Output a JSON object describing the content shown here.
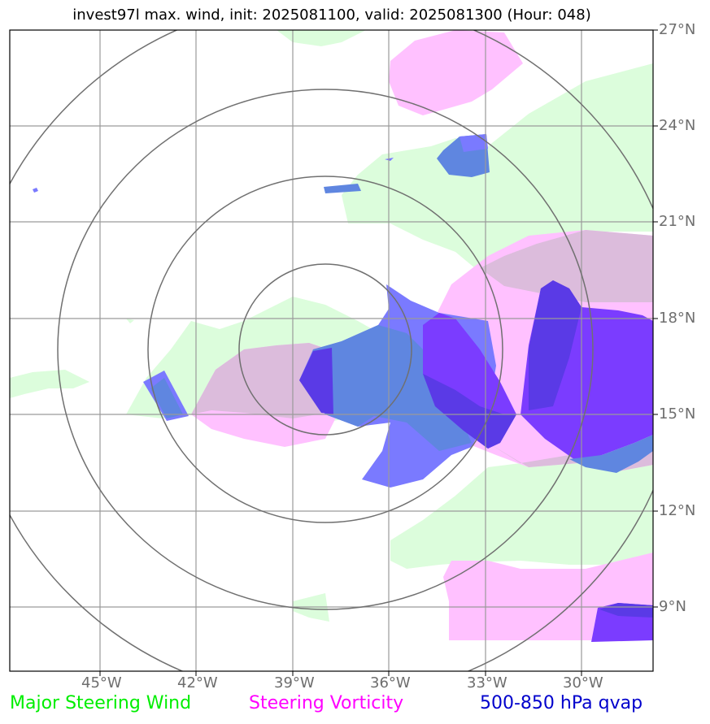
{
  "title": "invest97l max. wind, init: 2025081100, valid: 2025081300 (Hour: 048)",
  "lat_labels": [
    "27°N",
    "24°N",
    "21°N",
    "18°N",
    "15°N",
    "12°N",
    "9°N"
  ],
  "lon_labels": [
    "45°W",
    "42°W",
    "39°W",
    "36°W",
    "33°W",
    "30°W"
  ],
  "legend": [
    {
      "label": "Major Steering Wind",
      "color": "#00ee00"
    },
    {
      "label": "Steering Vorticity",
      "color": "#ff00ff"
    },
    {
      "label": "500-850 hPa qvap",
      "color": "#0000cc"
    }
  ],
  "colors": {
    "steering_wind_fill": "#dcfddc",
    "steering_vorticity_fill": "#ffc1ff",
    "overlap_fill": "#dcbcdc",
    "qvap_light": "#7a7aff",
    "qvap_mid": "#5f86e0",
    "qvap_strong": "#7b3cff",
    "qvap_dark": "#5a3ae6",
    "grid": "#9a9a9a",
    "range_ring": "#707070"
  }
}
